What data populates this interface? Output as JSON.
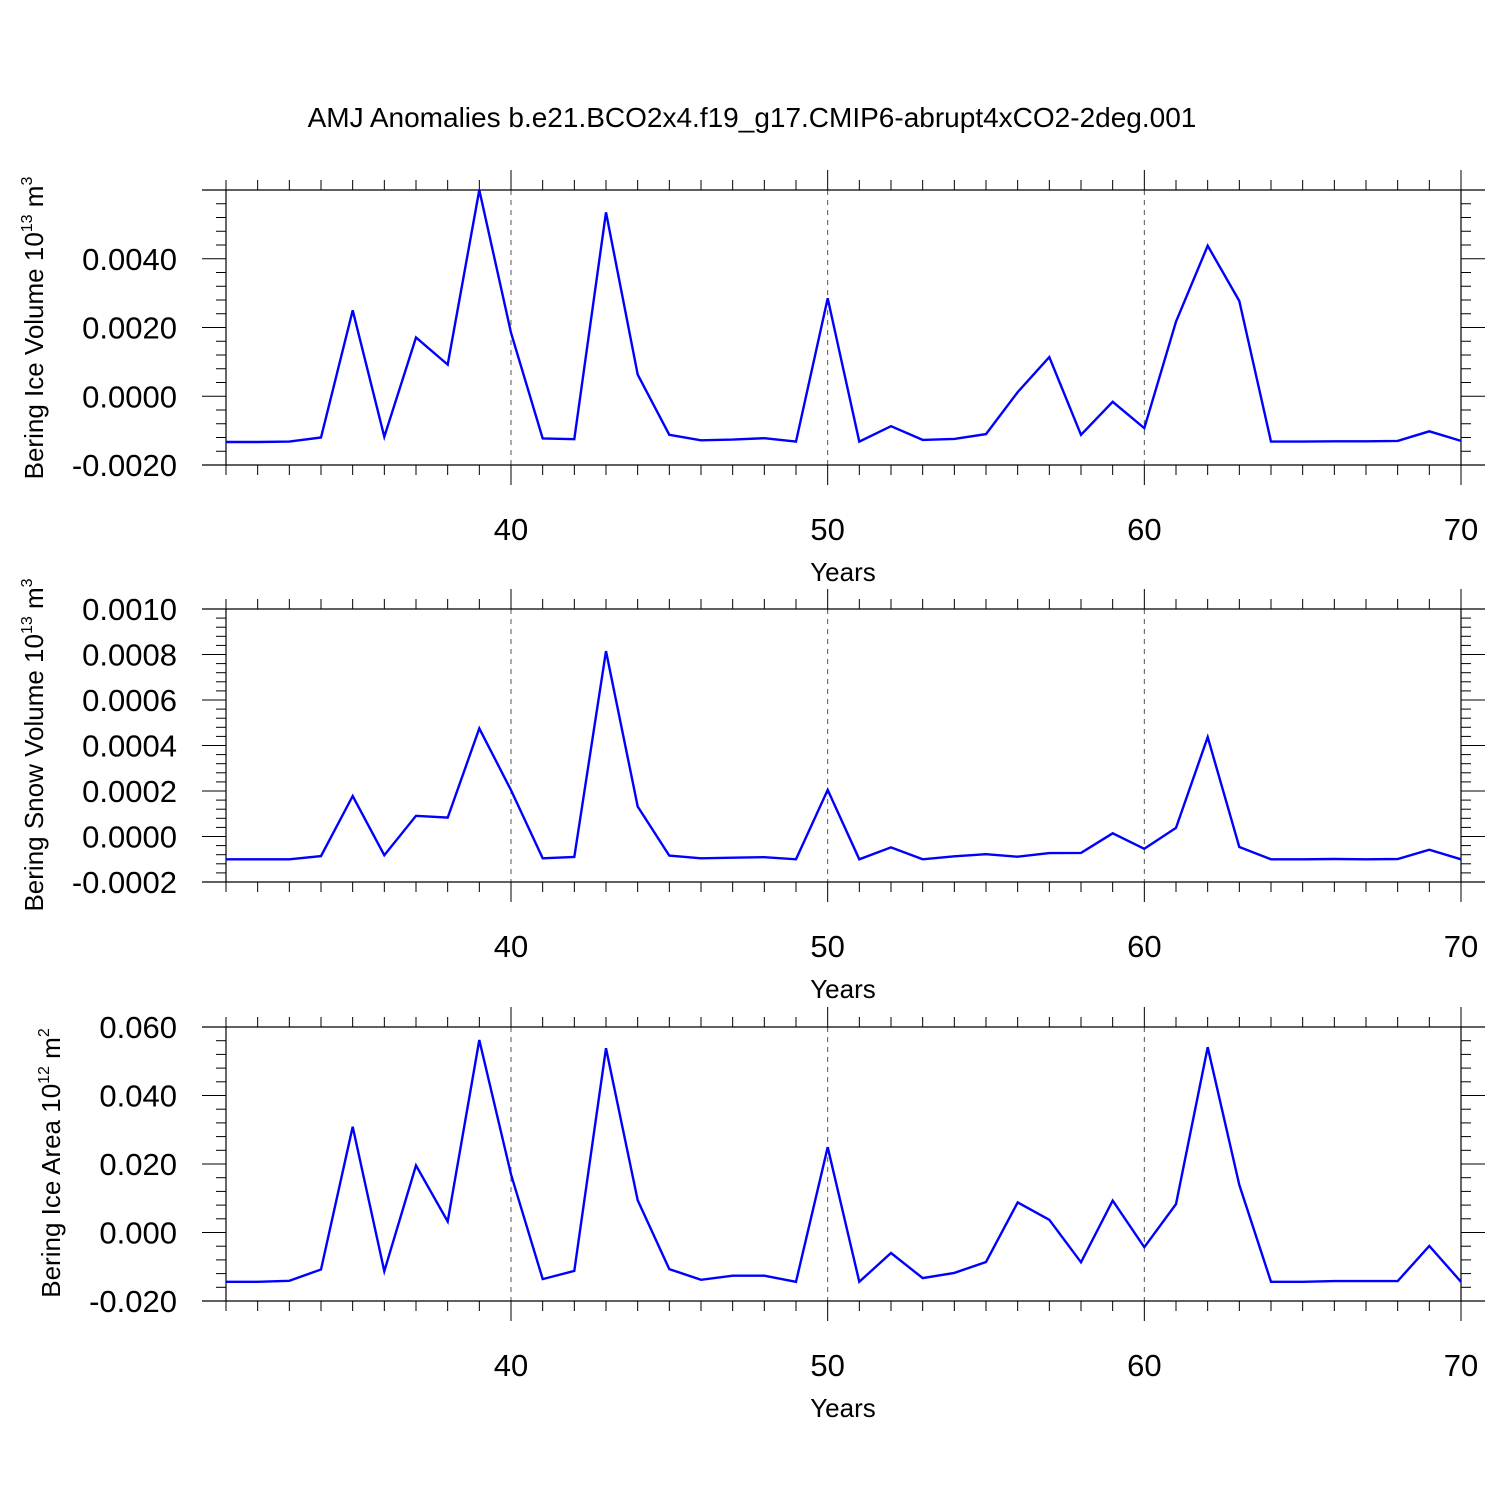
{
  "figure": {
    "title": "AMJ Anomalies b.e21.BCO2x4.f19_g17.CMIP6-abrupt4xCO2-2deg.001",
    "line_color": "#0000ff",
    "grid_color": "#555555"
  },
  "chart_data": [
    {
      "type": "line",
      "ylabel": {
        "main": "Bering Ice Volume 10",
        "sup": "13",
        "unit": " m",
        "unit_sup": "3"
      },
      "xlabel": "Years",
      "xlim": [
        31,
        70
      ],
      "ylim": [
        -0.002,
        0.006
      ],
      "xticks": [
        40,
        50,
        60,
        70
      ],
      "xtick_labels": [
        "40",
        "50",
        "60",
        "70"
      ],
      "yticks": [
        -0.002,
        0,
        0.002,
        0.004
      ],
      "ytick_labels": [
        "-0.0020",
        "0.0000",
        "0.0020",
        "0.0040"
      ],
      "grid": "dashed vertical at major x ticks",
      "series": [
        {
          "x": [
            31,
            32,
            33,
            34,
            35,
            36,
            37,
            38,
            39,
            40,
            41,
            42,
            43,
            44,
            45,
            46,
            47,
            48,
            49,
            50,
            51,
            52,
            53,
            54,
            55,
            56,
            57,
            58,
            59,
            60,
            61,
            62,
            63,
            64,
            65,
            66,
            67,
            68,
            69,
            70
          ],
          "values": [
            -0.00133,
            -0.00133,
            -0.00132,
            -0.0012,
            0.0025,
            -0.00118,
            0.00171,
            0.00092,
            0.006,
            0.00185,
            -0.00123,
            -0.00125,
            0.00535,
            0.00063,
            -0.00112,
            -0.00128,
            -0.00126,
            -0.00122,
            -0.00132,
            0.00285,
            -0.00132,
            -0.00087,
            -0.00127,
            -0.00124,
            -0.0011,
            0.00012,
            0.00114,
            -0.00112,
            -0.00016,
            -0.00093,
            0.00217,
            0.00438,
            0.00277,
            -0.00132,
            -0.00132,
            -0.00131,
            -0.00131,
            -0.0013,
            -0.00102,
            -0.0013
          ]
        }
      ]
    },
    {
      "type": "line",
      "ylabel": {
        "main": "Bering Snow Volume 10",
        "sup": "13",
        "unit": " m",
        "unit_sup": "3"
      },
      "xlabel": "Years",
      "xlim": [
        31,
        70
      ],
      "ylim": [
        -0.0002,
        0.001
      ],
      "xticks": [
        40,
        50,
        60,
        70
      ],
      "xtick_labels": [
        "40",
        "50",
        "60",
        "70"
      ],
      "yticks": [
        -0.0002,
        0,
        0.0002,
        0.0004,
        0.0006,
        0.0008,
        0.001
      ],
      "ytick_labels": [
        "-0.0002",
        "0.0000",
        "0.0002",
        "0.0004",
        "0.0006",
        "0.0008",
        "0.0010"
      ],
      "grid": "dashed vertical at major x ticks",
      "series": [
        {
          "x": [
            31,
            32,
            33,
            34,
            35,
            36,
            37,
            38,
            39,
            40,
            41,
            42,
            43,
            44,
            45,
            46,
            47,
            48,
            49,
            50,
            51,
            52,
            53,
            54,
            55,
            56,
            57,
            58,
            59,
            60,
            61,
            62,
            63,
            64,
            65,
            66,
            67,
            68,
            69,
            70
          ],
          "values": [
            -0.0001,
            -0.0001,
            -0.0001,
            -8.6e-05,
            0.000178,
            -8.2e-05,
            9.1e-05,
            8.3e-05,
            0.000475,
            0.000204,
            -9.6e-05,
            -9e-05,
            0.000815,
            0.000132,
            -8.4e-05,
            -9.6e-05,
            -9.3e-05,
            -9.1e-05,
            -0.0001,
            0.000205,
            -0.0001,
            -4.8e-05,
            -0.0001,
            -8.7e-05,
            -7.8e-05,
            -8.9e-05,
            -7.3e-05,
            -7.2e-05,
            1.4e-05,
            -5.4e-05,
            3.8e-05,
            0.000437,
            -4.6e-05,
            -0.0001,
            -0.0001,
            -9.9e-05,
            -0.0001,
            -9.9e-05,
            -5.8e-05,
            -0.0001
          ]
        }
      ]
    },
    {
      "type": "line",
      "ylabel": {
        "main": "Bering Ice Area 10",
        "sup": "12",
        "unit": " m",
        "unit_sup": "2"
      },
      "xlabel": "Years",
      "xlim": [
        31,
        70
      ],
      "ylim": [
        -0.02,
        0.06
      ],
      "xticks": [
        40,
        50,
        60,
        70
      ],
      "xtick_labels": [
        "40",
        "50",
        "60",
        "70"
      ],
      "yticks": [
        -0.02,
        0,
        0.02,
        0.04,
        0.06
      ],
      "ytick_labels": [
        "-0.020",
        "0.000",
        "0.020",
        "0.040",
        "0.060"
      ],
      "grid": "dashed vertical at major x ticks",
      "series": [
        {
          "x": [
            31,
            32,
            33,
            34,
            35,
            36,
            37,
            38,
            39,
            40,
            41,
            42,
            43,
            44,
            45,
            46,
            47,
            48,
            49,
            50,
            51,
            52,
            53,
            54,
            55,
            56,
            57,
            58,
            59,
            60,
            61,
            62,
            63,
            64,
            65,
            66,
            67,
            68,
            69,
            70
          ],
          "values": [
            -0.0144,
            -0.0144,
            -0.0141,
            -0.0108,
            0.0309,
            -0.0113,
            0.0196,
            0.0032,
            0.0562,
            0.017,
            -0.0136,
            -0.0112,
            0.0538,
            0.0094,
            -0.0107,
            -0.0138,
            -0.0126,
            -0.0126,
            -0.0144,
            0.0249,
            -0.0144,
            -0.006,
            -0.0133,
            -0.0118,
            -0.0086,
            0.0088,
            0.0037,
            -0.0087,
            0.0093,
            -0.0043,
            0.0083,
            0.0541,
            0.0139,
            -0.0144,
            -0.0144,
            -0.0142,
            -0.0142,
            -0.0142,
            -0.0039,
            -0.0144
          ]
        }
      ]
    }
  ]
}
